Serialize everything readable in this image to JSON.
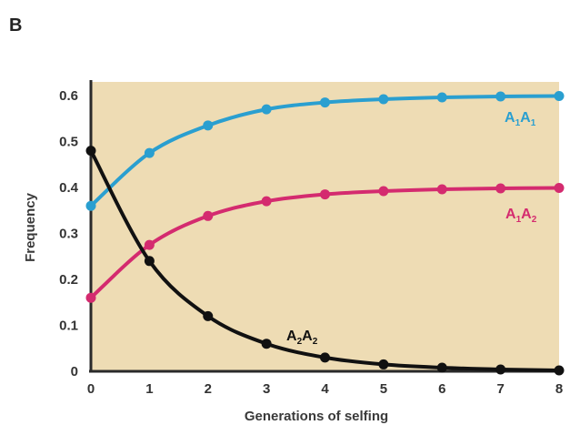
{
  "panel_label": "B",
  "chart_data": {
    "type": "line",
    "xlabel": "Generations of selfing",
    "ylabel": "Frequency",
    "x": [
      0,
      1,
      2,
      3,
      4,
      5,
      6,
      7,
      8
    ],
    "xlim": [
      0,
      8
    ],
    "ylim": [
      0,
      0.6
    ],
    "x_ticks": [
      "0",
      "1",
      "2",
      "3",
      "4",
      "5",
      "6",
      "7",
      "8"
    ],
    "y_ticks": [
      "0",
      "0.1",
      "0.2",
      "0.3",
      "0.4",
      "0.5",
      "0.6"
    ],
    "y_tick_values": [
      0,
      0.1,
      0.2,
      0.3,
      0.4,
      0.5,
      0.6
    ],
    "grid": false,
    "plot_background": "#eedcb4",
    "series": [
      {
        "label": {
          "a": "A",
          "s1": "1",
          "b": "A",
          "s2": "1"
        },
        "color": "#2a9fd0",
        "values": [
          0.36,
          0.475,
          0.535,
          0.57,
          0.585,
          0.592,
          0.596,
          0.598,
          0.599
        ]
      },
      {
        "label": {
          "a": "A",
          "s1": "1",
          "b": "A",
          "s2": "2"
        },
        "color": "#d42b6f",
        "values": [
          0.16,
          0.275,
          0.338,
          0.37,
          0.385,
          0.392,
          0.396,
          0.398,
          0.399
        ]
      },
      {
        "label": {
          "a": "A",
          "s1": "2",
          "b": "A",
          "s2": "2"
        },
        "color": "#111111",
        "values": [
          0.48,
          0.24,
          0.12,
          0.06,
          0.03,
          0.015,
          0.008,
          0.004,
          0.002
        ]
      }
    ]
  }
}
